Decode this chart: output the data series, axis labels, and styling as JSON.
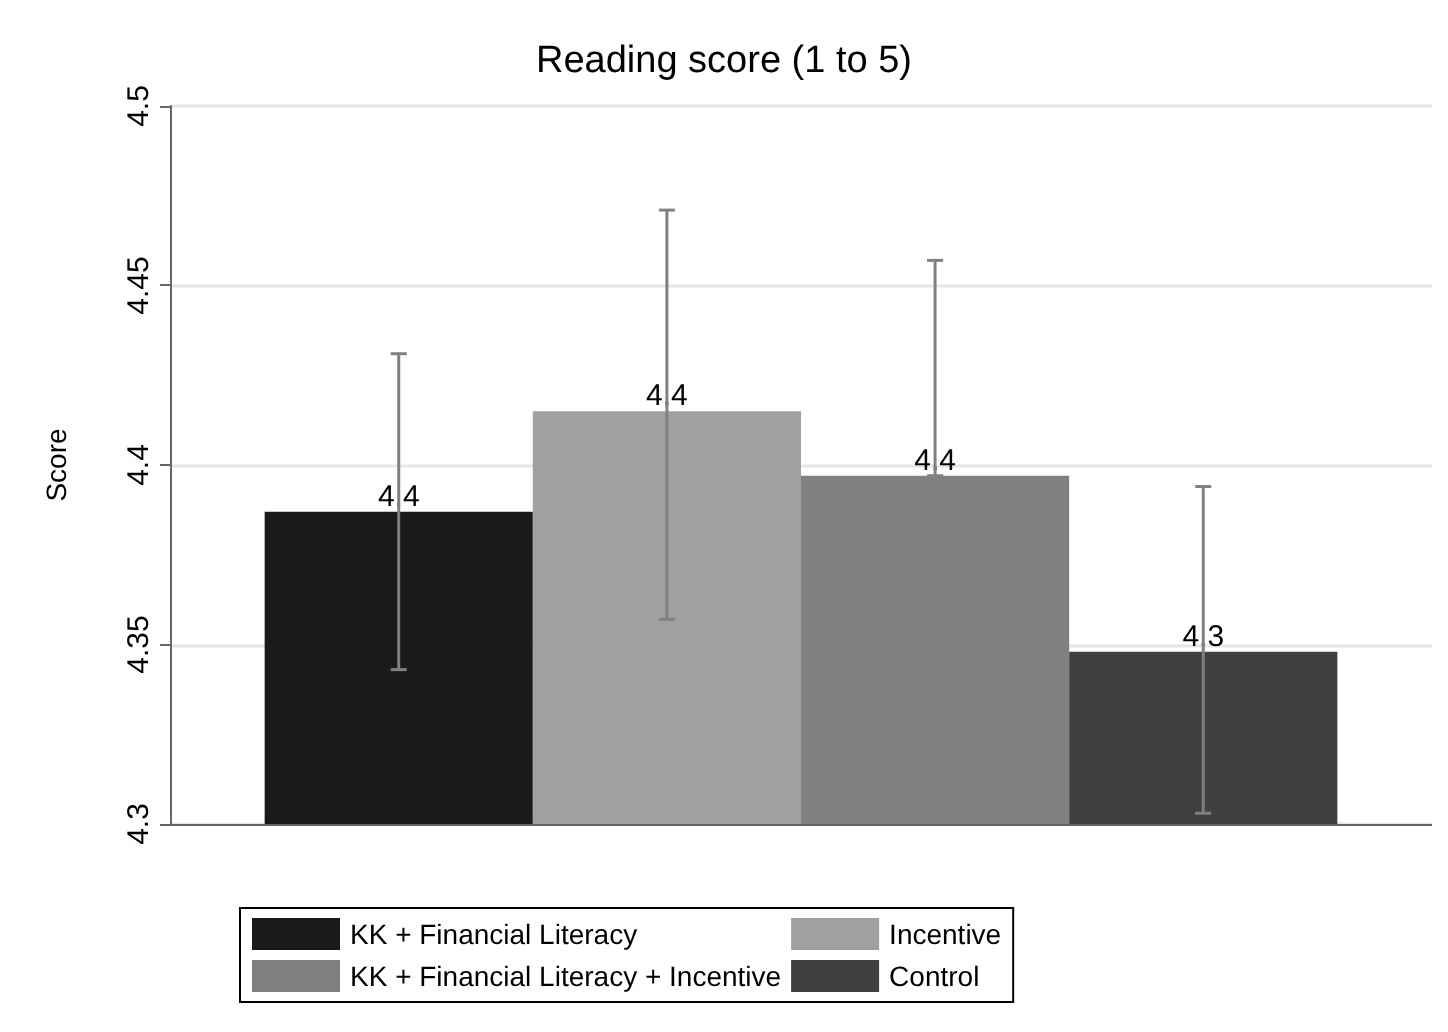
{
  "chart_data": {
    "type": "bar",
    "title": "Reading score (1 to 5)",
    "ylabel": "Score",
    "categories": [
      null
    ],
    "series": [
      {
        "name": "KK + Financial Literacy",
        "color": "#1a1a1a",
        "values": [
          4.387
        ],
        "errors": [
          [
            4.343,
            4.431
          ]
        ],
        "value_labels": [
          "4.4"
        ]
      },
      {
        "name": "Incentive",
        "color": "#a0a0a0",
        "values": [
          4.415
        ],
        "errors": [
          [
            4.357,
            4.471
          ]
        ],
        "value_labels": [
          "4.4"
        ]
      },
      {
        "name": "KK + Financial Literacy + Incentive",
        "color": "#808080",
        "values": [
          4.397
        ],
        "errors": [
          [
            4.397,
            4.457
          ]
        ],
        "value_labels": [
          "4.4"
        ]
      },
      {
        "name": "Control",
        "color": "#404040",
        "values": [
          4.348
        ],
        "errors": [
          [
            4.303,
            4.394
          ]
        ],
        "value_labels": [
          "4.3"
        ]
      }
    ],
    "ylim": [
      4.3,
      4.5
    ],
    "yticks": [
      4.3,
      4.35,
      4.4,
      4.45,
      4.5
    ],
    "grid": "y",
    "legend": "bottom"
  }
}
